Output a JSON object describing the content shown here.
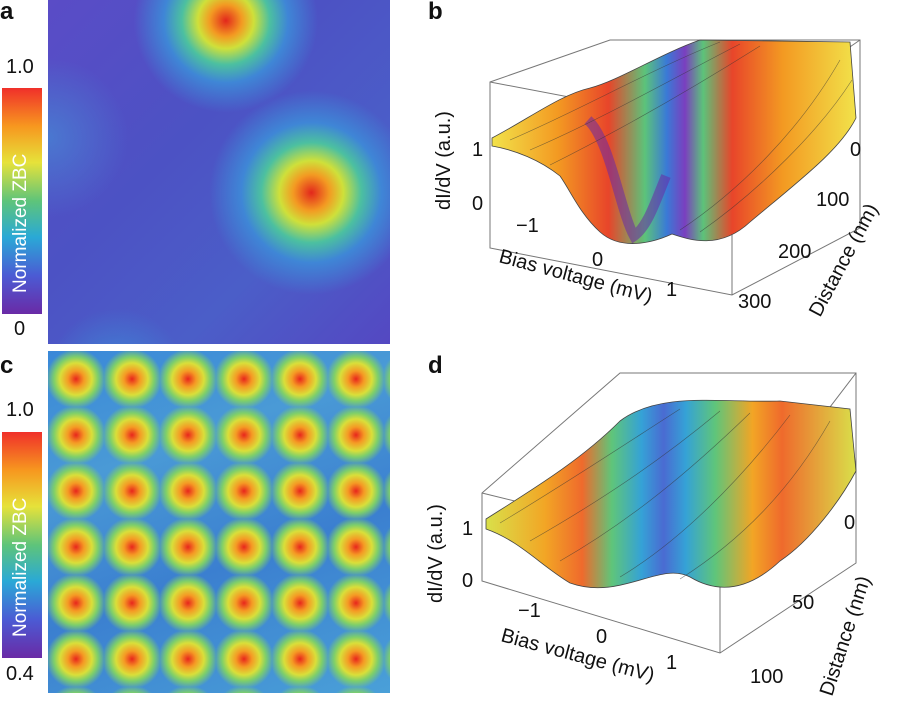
{
  "panels": {
    "a": {
      "letter": "a",
      "colorbar": {
        "max": "1.0",
        "min": "0",
        "label": "Normalized ZBC"
      }
    },
    "b": {
      "letter": "b",
      "zlabel": "dI/dV (a.u.)",
      "xlabel": "Bias voltage (mV)",
      "ylabel": "Distance (nm)",
      "zticks": [
        "1",
        "0"
      ],
      "xticks": [
        "−1",
        "0",
        "1"
      ],
      "yticks": [
        "0",
        "100",
        "200",
        "300"
      ]
    },
    "c": {
      "letter": "c",
      "colorbar": {
        "max": "1.0",
        "min": "0.4",
        "label": "Normalized ZBC"
      }
    },
    "d": {
      "letter": "d",
      "zlabel": "dI/dV (a.u.)",
      "xlabel": "Bias voltage (mV)",
      "ylabel": "Distance (nm)",
      "zticks": [
        "1",
        "0"
      ],
      "xticks": [
        "−1",
        "0",
        "1"
      ],
      "yticks": [
        "0",
        "50",
        "100"
      ]
    }
  }
}
